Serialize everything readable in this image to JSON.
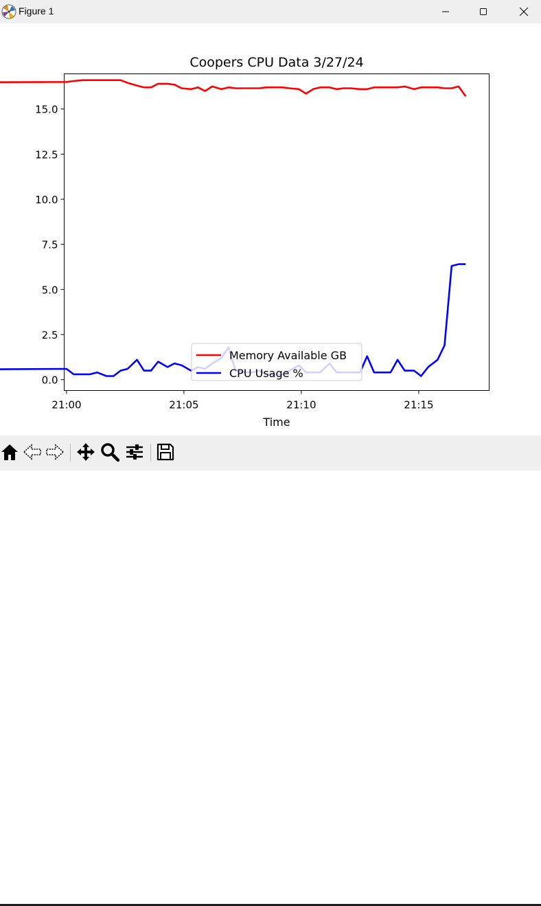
{
  "window": {
    "title": "Figure 1",
    "icon": "matplotlib-logo-icon",
    "controls": [
      "minimize-icon",
      "maximize-icon",
      "close-icon"
    ]
  },
  "toolbar": {
    "buttons": [
      "home-icon",
      "back-arrow-icon",
      "forward-arrow-icon",
      "pan-move-icon",
      "zoom-magnifier-icon",
      "configure-subplots-icon",
      "save-floppy-icon"
    ]
  },
  "chart_data": {
    "type": "line",
    "title": "Coopers CPU Data 3/27/24",
    "xlabel": "Time",
    "ylabel": "",
    "x_unit": "minutes",
    "xlim": [
      20.999,
      21.18
    ],
    "ylim": [
      -0.6,
      16.95
    ],
    "xticks": [
      {
        "value": 21.0,
        "label": "21:00"
      },
      {
        "value": 21.05,
        "label": "21:05"
      },
      {
        "value": 21.1,
        "label": "21:10"
      },
      {
        "value": 21.15,
        "label": "21:15"
      }
    ],
    "yticks": [
      {
        "value": 0.0,
        "label": "0.0"
      },
      {
        "value": 2.5,
        "label": "2.5"
      },
      {
        "value": 5.0,
        "label": "5.0"
      },
      {
        "value": 7.5,
        "label": "7.5"
      },
      {
        "value": 10.0,
        "label": "10.0"
      },
      {
        "value": 12.5,
        "label": "12.5"
      },
      {
        "value": 15.0,
        "label": "15.0"
      }
    ],
    "grid": false,
    "legend": {
      "placement": "lower center"
    },
    "x": [
      "20:59.4",
      "20:59.7",
      "21:00.0",
      "21:00.3",
      "21:00.7",
      "21:01.0",
      "21:01.3",
      "21:01.7",
      "21:02.0",
      "21:02.3",
      "21:02.6",
      "21:03.0",
      "21:03.3",
      "21:03.6",
      "21:03.9",
      "21:04.3",
      "21:04.6",
      "21:04.9",
      "21:05.3",
      "21:05.6",
      "21:05.9",
      "21:06.2",
      "21:06.6",
      "21:06.9",
      "21:07.2",
      "21:07.6",
      "21:07.9",
      "21:08.2",
      "21:08.5",
      "21:08.9",
      "21:09.2",
      "21:09.5",
      "21:09.9",
      "21:10.2",
      "21:10.5",
      "21:10.8",
      "21:11.2",
      "21:11.5",
      "21:11.8",
      "21:12.1",
      "21:12.5",
      "21:12.8",
      "21:13.1",
      "21:13.5",
      "21:13.8",
      "21:14.1",
      "21:14.4",
      "21:14.8",
      "21:15.1",
      "21:15.4",
      "21:15.8",
      "21:16.1",
      "21:16.4",
      "21:16.7",
      "21:17.0"
    ],
    "series": [
      {
        "name": "Memory Available GB",
        "color": "#ff0000",
        "values": [
          16.5,
          16.3,
          16.5,
          16.55,
          16.6,
          16.6,
          16.6,
          16.6,
          16.6,
          16.6,
          16.45,
          16.3,
          16.2,
          16.2,
          16.4,
          16.4,
          16.35,
          16.15,
          16.1,
          16.2,
          16.0,
          16.25,
          16.1,
          16.2,
          16.15,
          16.15,
          16.15,
          16.15,
          16.2,
          16.2,
          16.2,
          16.15,
          16.1,
          15.85,
          16.1,
          16.2,
          16.2,
          16.1,
          16.15,
          16.15,
          16.1,
          16.1,
          16.2,
          16.2,
          16.2,
          16.2,
          16.25,
          16.1,
          16.2,
          16.2,
          16.2,
          16.15,
          16.15,
          16.25,
          15.7
        ]
      },
      {
        "name": "CPU Usage %",
        "color": "#0000ff",
        "values": [
          1.8,
          0.3,
          0.6,
          0.3,
          0.3,
          0.3,
          0.4,
          0.2,
          0.2,
          0.5,
          0.6,
          1.1,
          0.5,
          0.5,
          1.0,
          0.7,
          0.9,
          0.8,
          0.5,
          0.7,
          0.6,
          0.9,
          1.2,
          1.8,
          0.5,
          0.4,
          0.4,
          0.5,
          0.3,
          0.3,
          0.3,
          0.5,
          0.8,
          0.4,
          0.4,
          0.4,
          0.9,
          0.4,
          0.4,
          0.4,
          0.4,
          1.3,
          0.4,
          0.4,
          0.4,
          1.1,
          0.5,
          0.5,
          0.2,
          0.7,
          1.1,
          1.9,
          6.3,
          6.4,
          6.4
        ]
      }
    ]
  }
}
